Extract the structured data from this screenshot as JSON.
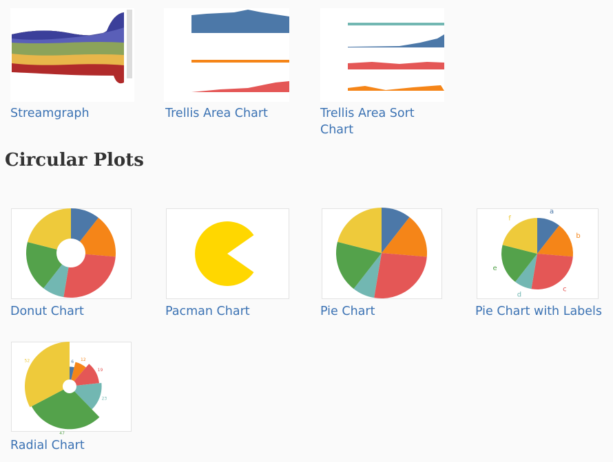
{
  "gallery": {
    "top_row": [
      {
        "title": "Streamgraph"
      },
      {
        "title": "Trellis Area Chart"
      },
      {
        "title": "Trellis Area Sort Chart"
      }
    ],
    "section": {
      "heading": "Circular Plots",
      "items": [
        {
          "title": "Donut Chart"
        },
        {
          "title": "Pacman Chart"
        },
        {
          "title": "Pie Chart"
        },
        {
          "title": "Pie Chart with Labels"
        },
        {
          "title": "Radial Chart"
        }
      ]
    },
    "pie": {
      "categories": [
        "a",
        "b",
        "c",
        "d",
        "e",
        "f"
      ],
      "values": [
        4,
        6,
        10,
        3,
        7,
        8
      ],
      "colors": [
        "#4c78a8",
        "#f58518",
        "#e45756",
        "#72b7b2",
        "#54a24b",
        "#eeca3b"
      ]
    },
    "radial": {
      "values": [
        6,
        12,
        19,
        23,
        47,
        52
      ],
      "colors": [
        "#4c78a8",
        "#f58518",
        "#e45756",
        "#72b7b2",
        "#54a24b",
        "#eeca3b"
      ]
    }
  }
}
